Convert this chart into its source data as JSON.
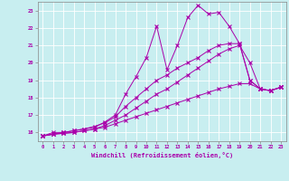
{
  "title": "",
  "xlabel": "Windchill (Refroidissement éolien,°C)",
  "background_color": "#c8eef0",
  "grid_color": "#ffffff",
  "line_color": "#aa00aa",
  "xlim": [
    -0.5,
    23.5
  ],
  "ylim": [
    15.5,
    23.5
  ],
  "yticks": [
    16,
    17,
    18,
    19,
    20,
    21,
    22,
    23
  ],
  "xticks": [
    0,
    1,
    2,
    3,
    4,
    5,
    6,
    7,
    8,
    9,
    10,
    11,
    12,
    13,
    14,
    15,
    16,
    17,
    18,
    19,
    20,
    21,
    22,
    23
  ],
  "series": [
    {
      "x": [
        0,
        1,
        2,
        3,
        4,
        5,
        6,
        7,
        8,
        9,
        10,
        11,
        12,
        13,
        14,
        15,
        16,
        17,
        18,
        19,
        20,
        21,
        22,
        23
      ],
      "y": [
        15.8,
        16.0,
        16.0,
        16.1,
        16.2,
        16.3,
        16.6,
        17.0,
        18.2,
        19.2,
        20.3,
        22.1,
        19.6,
        21.0,
        22.6,
        23.3,
        22.8,
        22.9,
        22.1,
        21.1,
        19.0,
        18.5,
        18.4,
        18.6
      ]
    },
    {
      "x": [
        0,
        1,
        2,
        3,
        4,
        5,
        6,
        7,
        8,
        9,
        10,
        11,
        12,
        13,
        14,
        15,
        16,
        17,
        18,
        19,
        20,
        21,
        22,
        23
      ],
      "y": [
        15.8,
        15.9,
        16.0,
        16.1,
        16.2,
        16.35,
        16.55,
        16.9,
        17.5,
        18.0,
        18.5,
        19.0,
        19.3,
        19.7,
        20.0,
        20.3,
        20.7,
        21.0,
        21.1,
        21.1,
        19.0,
        18.5,
        18.4,
        18.6
      ]
    },
    {
      "x": [
        0,
        1,
        2,
        3,
        4,
        5,
        6,
        7,
        8,
        9,
        10,
        11,
        12,
        13,
        14,
        15,
        16,
        17,
        18,
        19,
        20,
        21,
        22,
        23
      ],
      "y": [
        15.8,
        15.9,
        15.95,
        16.0,
        16.1,
        16.2,
        16.4,
        16.7,
        17.0,
        17.4,
        17.8,
        18.2,
        18.5,
        18.9,
        19.3,
        19.7,
        20.1,
        20.5,
        20.8,
        21.0,
        20.0,
        18.5,
        18.4,
        18.6
      ]
    },
    {
      "x": [
        0,
        1,
        2,
        3,
        4,
        5,
        6,
        7,
        8,
        9,
        10,
        11,
        12,
        13,
        14,
        15,
        16,
        17,
        18,
        19,
        20,
        21,
        22,
        23
      ],
      "y": [
        15.8,
        15.9,
        15.95,
        16.0,
        16.1,
        16.2,
        16.3,
        16.5,
        16.7,
        16.9,
        17.1,
        17.3,
        17.5,
        17.7,
        17.9,
        18.1,
        18.3,
        18.5,
        18.65,
        18.8,
        18.8,
        18.5,
        18.4,
        18.6
      ]
    }
  ]
}
